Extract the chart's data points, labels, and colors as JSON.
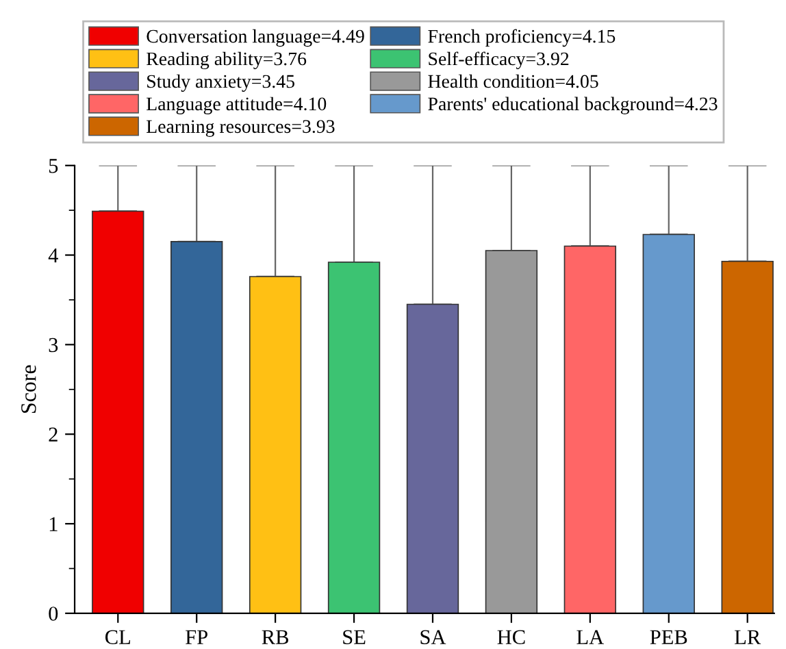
{
  "chart_data": {
    "type": "bar",
    "ylabel": "Score",
    "categories": [
      "CL",
      "FP",
      "RB",
      "SE",
      "SA",
      "HC",
      "LA",
      "PEB",
      "LR"
    ],
    "series": [
      {
        "name": "Conversation language=4.49",
        "color": "#f00000",
        "values": [
          4.49,
          null,
          null,
          null,
          null,
          null,
          null,
          null,
          null
        ],
        "errors": [
          [
            4.49,
            5
          ],
          null,
          null,
          null,
          null,
          null,
          null,
          null,
          null
        ]
      },
      {
        "name": "French proficiency=4.15",
        "color": "#336699",
        "values": [
          null,
          4.15,
          null,
          null,
          null,
          null,
          null,
          null,
          null
        ],
        "errors": [
          null,
          [
            4.15,
            5
          ],
          null,
          null,
          null,
          null,
          null,
          null,
          null
        ]
      },
      {
        "name": "Reading ability=3.76",
        "color": "#ffc014",
        "values": [
          null,
          null,
          3.76,
          null,
          null,
          null,
          null,
          null,
          null
        ],
        "errors": [
          null,
          null,
          [
            3.76,
            5
          ],
          null,
          null,
          null,
          null,
          null,
          null
        ]
      },
      {
        "name": "Self-efficacy=3.92",
        "color": "#3cc372",
        "values": [
          null,
          null,
          null,
          3.92,
          null,
          null,
          null,
          null,
          null
        ],
        "errors": [
          null,
          null,
          null,
          [
            3.92,
            5
          ],
          null,
          null,
          null,
          null,
          null
        ]
      },
      {
        "name": "Study anxiety=3.45",
        "color": "#67679b",
        "values": [
          null,
          null,
          null,
          null,
          3.45,
          null,
          null,
          null,
          null
        ],
        "errors": [
          null,
          null,
          null,
          null,
          [
            3.45,
            5
          ],
          null,
          null,
          null,
          null
        ]
      },
      {
        "name": "Health condition=4.05",
        "color": "#999999",
        "values": [
          null,
          null,
          null,
          null,
          null,
          4.05,
          null,
          null,
          null
        ],
        "errors": [
          null,
          null,
          null,
          null,
          null,
          [
            4.05,
            5
          ],
          null,
          null,
          null
        ]
      },
      {
        "name": "Language attitude=4.10",
        "color": "#ff6666",
        "values": [
          null,
          null,
          null,
          null,
          null,
          null,
          4.1,
          null,
          null
        ],
        "errors": [
          null,
          null,
          null,
          null,
          null,
          null,
          [
            4.1,
            5
          ],
          null,
          null
        ]
      },
      {
        "name": "Parents' educational background=4.23",
        "color": "#6699cc",
        "values": [
          null,
          null,
          null,
          null,
          null,
          null,
          null,
          4.23,
          null
        ],
        "errors": [
          null,
          null,
          null,
          null,
          null,
          null,
          null,
          [
            4.23,
            5
          ],
          null
        ]
      },
      {
        "name": "Learning resources=3.93",
        "color": "#cc6600",
        "values": [
          null,
          null,
          null,
          null,
          null,
          null,
          null,
          null,
          3.93
        ],
        "errors": [
          null,
          null,
          null,
          null,
          null,
          null,
          null,
          null,
          [
            3.93,
            5
          ]
        ]
      }
    ],
    "ylim": [
      0,
      5
    ],
    "yticks": [
      0,
      1,
      2,
      3,
      4,
      5
    ],
    "grid": false,
    "legend": "top"
  }
}
